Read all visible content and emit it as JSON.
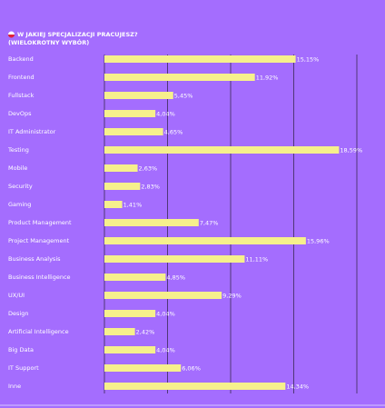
{
  "chart_data": {
    "type": "bar",
    "orientation": "horizontal",
    "title": "W JAKIEJ SPECJALIZACJI PRACUJESZ?",
    "subtitle": "(WIELOKROTNY WYBÓR)",
    "categories": [
      "Backend",
      "Frontend",
      "Fullstack",
      "DevOps",
      "IT Administrator",
      "Testing",
      "Mobile",
      "Security",
      "Gaming",
      "Product Management",
      "Project Management",
      "Business Analysis",
      "Business Intelligence",
      "UX/UI",
      "Design",
      "Artificial Intelligence",
      "Big Data",
      "IT Support",
      "Inne"
    ],
    "values": [
      15.15,
      11.92,
      5.45,
      4.04,
      4.65,
      18.59,
      2.63,
      2.83,
      1.41,
      7.47,
      15.96,
      11.11,
      4.85,
      9.29,
      4.04,
      2.42,
      4.04,
      6.06,
      14.34
    ],
    "value_labels": [
      "15,15%",
      "11,92%",
      "5,45%",
      "4,04%",
      "4,65%",
      "18,59%",
      "2,63%",
      "2,83%",
      "1,41%",
      "7,47%",
      "15,96%",
      "11,11%",
      "4,85%",
      "9,29%",
      "4,04%",
      "2,42%",
      "4,04%",
      "6,06%",
      "14,34%"
    ],
    "color": "#f6f08c",
    "xlim": [
      0,
      20
    ],
    "xticks": [
      0,
      5,
      10,
      15,
      20
    ],
    "grid": true
  }
}
